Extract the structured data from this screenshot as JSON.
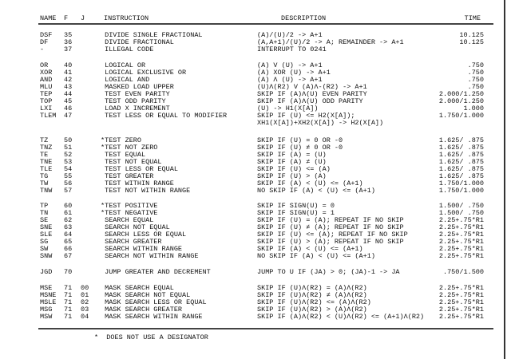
{
  "headers": {
    "name": "NAME",
    "f": "F",
    "j": "J",
    "instruction": "INSTRUCTION",
    "description": "DESCRIPTION",
    "time": "TIME"
  },
  "groups": [
    {
      "rows": [
        {
          "name": "DSF",
          "f": "35",
          "j": "",
          "instruction": " DIVIDE SINGLE FRACTIONAL",
          "description": "(A)/(U)/2 -> A+1",
          "time": "10.125"
        },
        {
          "name": "DF",
          "f": "36",
          "j": "",
          "instruction": " DIVIDE FRACTIONAL",
          "description": "(A,A+1)/(U)/2 -> A; REMAINDER -> A+1",
          "time": "10.125"
        },
        {
          "name": "-",
          "f": "37",
          "j": "",
          "instruction": " ILLEGAL CODE",
          "description": "INTERRUPT TO 0241",
          "time": ""
        }
      ]
    },
    {
      "rows": [
        {
          "name": "OR",
          "f": "40",
          "j": "",
          "instruction": " LOGICAL OR",
          "description": "(A) V (U) -> A+1",
          "time": ".750"
        },
        {
          "name": "XOR",
          "f": "41",
          "j": "",
          "instruction": " LOGICAL EXCLUSIVE OR",
          "description": "(A) XOR (U) -> A+1",
          "time": ".750"
        },
        {
          "name": "AND",
          "f": "42",
          "j": "",
          "instruction": " LOGICAL AND",
          "description": "(A) Λ (U) -> A+1",
          "time": ".750"
        },
        {
          "name": "MLU",
          "f": "43",
          "j": "",
          "instruction": " MASKED LOAD UPPER",
          "description": "(U)Λ(R2) V (A)Λ-(R2) -> A+1",
          "time": ".750"
        },
        {
          "name": "TEP",
          "f": "44",
          "j": "",
          "instruction": " TEST EVEN PARITY",
          "description": "SKIP IF (A)Λ(U) EVEN PARITY",
          "time": "2.000/1.250"
        },
        {
          "name": "TOP",
          "f": "45",
          "j": "",
          "instruction": " TEST ODD PARITY",
          "description": "SKIP IF (A)Λ(U) ODD PARITY",
          "time": "2.000/1.250"
        },
        {
          "name": "LXI",
          "f": "46",
          "j": "",
          "instruction": " LOAD X INCREMENT",
          "description": "(U) -> H1(X[A])",
          "time": "1.000"
        },
        {
          "name": "TLEM",
          "f": "47",
          "j": "",
          "instruction": " TEST LESS OR EQUAL TO MODIFIER",
          "description": "SKIP IF (U) <= H2(X[A]);",
          "time": "1.750/1.000"
        },
        {
          "name": "",
          "f": "",
          "j": "",
          "instruction": "",
          "description": "XH1(X[A])+XH2(X[A]) -> H2(X[A])",
          "time": ""
        }
      ]
    },
    {
      "rows": [
        {
          "name": "TZ",
          "f": "50",
          "j": "",
          "instruction": "*TEST ZERO",
          "description": "SKIP IF (U) = 0 OR -0",
          "time": "1.625/ .875"
        },
        {
          "name": "TNZ",
          "f": "51",
          "j": "",
          "instruction": "*TEST NOT ZERO",
          "description": "SKIP IF (U) ≠ 0 OR -0",
          "time": "1.625/ .875"
        },
        {
          "name": "TE",
          "f": "52",
          "j": "",
          "instruction": " TEST EQUAL",
          "description": "SKIP IF (A) = (U)",
          "time": "1.625/ .875"
        },
        {
          "name": "TNE",
          "f": "53",
          "j": "",
          "instruction": " TEST NOT EQUAL",
          "description": "SKIP IF (A) ≠ (U)",
          "time": "1.625/ .875"
        },
        {
          "name": "TLE",
          "f": "54",
          "j": "",
          "instruction": " TEST LESS OR EQUAL",
          "description": "SKIP IF (U) <= (A)",
          "time": "1.625/ .875"
        },
        {
          "name": "TG",
          "f": "55",
          "j": "",
          "instruction": " TEST GREATER",
          "description": "SKIP IF (U) > (A)",
          "time": "1.625/ .875"
        },
        {
          "name": "TW",
          "f": "56",
          "j": "",
          "instruction": " TEST WITHIN RANGE",
          "description": "SKIP IF (A) < (U) <= (A+1)",
          "time": "1.750/1.000"
        },
        {
          "name": "TNW",
          "f": "57",
          "j": "",
          "instruction": " TEST NOT WITHIN RANGE",
          "description": "NO SKIP IF (A) < (U) <= (A+1)",
          "time": "1.750/1.000"
        }
      ]
    },
    {
      "rows": [
        {
          "name": "TP",
          "f": "60",
          "j": "",
          "instruction": "*TEST POSITIVE",
          "description": "SKIP IF SIGN(U) = 0",
          "time": "1.500/ .750"
        },
        {
          "name": "TN",
          "f": "61",
          "j": "",
          "instruction": "*TEST NEGATIVE",
          "description": "SKIP IF SIGN(U) = 1",
          "time": "1.500/ .750"
        },
        {
          "name": "SE",
          "f": "62",
          "j": "",
          "instruction": " SEARCH EQUAL",
          "description": "SKIP IF (U) = (A); REPEAT IF NO SKIP",
          "time": "2.25+.75*R1"
        },
        {
          "name": "SNE",
          "f": "63",
          "j": "",
          "instruction": " SEARCH NOT EQUAL",
          "description": "SKIP IF (U) ≠ (A); REPEAT IF NO SKIP",
          "time": "2.25+.75*R1"
        },
        {
          "name": "SLE",
          "f": "64",
          "j": "",
          "instruction": " SEARCH LESS OR EQUAL",
          "description": "SKIP IF (U) <= (A); REPEAT IF NO SKIP",
          "time": "2.25+.75*R1"
        },
        {
          "name": "SG",
          "f": "65",
          "j": "",
          "instruction": " SEARCH GREATER",
          "description": "SKIP IF (U) > (A); REPEAT IF NO SKIP",
          "time": "2.25+.75*R1"
        },
        {
          "name": "SW",
          "f": "66",
          "j": "",
          "instruction": " SEARCH WITHIN RANGE",
          "description": "SKIP IF (A) < (U) <= (A+1)",
          "time": "2.25+.75*R1"
        },
        {
          "name": "SNW",
          "f": "67",
          "j": "",
          "instruction": " SEARCH NOT WITHIN RANGE",
          "description": "NO SKIP IF (A) < (U) <= (A+1)",
          "time": "2.25+.75*R1"
        }
      ]
    },
    {
      "rows": [
        {
          "name": "JGD",
          "f": "70",
          "j": "",
          "instruction": " JUMP GREATER AND DECREMENT",
          "description": "JUMP TO U IF (JA) > 0; (JA)-1 -> JA",
          "time": ".750/1.500"
        }
      ]
    },
    {
      "rows": [
        {
          "name": "MSE",
          "f": "71",
          "j": "00",
          "instruction": " MASK SEARCH EQUAL",
          "description": "SKIP IF (U)Λ(R2) = (A)Λ(R2)",
          "time": "2.25+.75*R1"
        },
        {
          "name": "MSNE",
          "f": "71",
          "j": "01",
          "instruction": " MASK SEARCH NOT EQUAL",
          "description": "SKIP IF (U)Λ(R2) ≠ (A)Λ(R2)",
          "time": "2.25+.75*R1"
        },
        {
          "name": "MSLE",
          "f": "71",
          "j": "02",
          "instruction": " MASK SEARCH LESS OR EQUAL",
          "description": "SKIP IF (U)Λ(R2) <= (A)Λ(R2)",
          "time": "2.25+.75*R1"
        },
        {
          "name": "MSG",
          "f": "71",
          "j": "03",
          "instruction": " MASK SEARCH GREATER",
          "description": "SKIP IF (U)Λ(R2) > (A)Λ(R2)",
          "time": "2.25+.75*R1"
        },
        {
          "name": "MSW",
          "f": "71",
          "j": "04",
          "instruction": " MASK SEARCH WITHIN RANGE",
          "description": "SKIP IF (A)Λ(R2) < (U)Λ(R2) <= (A+1)Λ(R2)",
          "time": "2.25+.75*R1"
        }
      ]
    }
  ],
  "footnote": "*  DOES NOT USE A DESIGNATOR"
}
